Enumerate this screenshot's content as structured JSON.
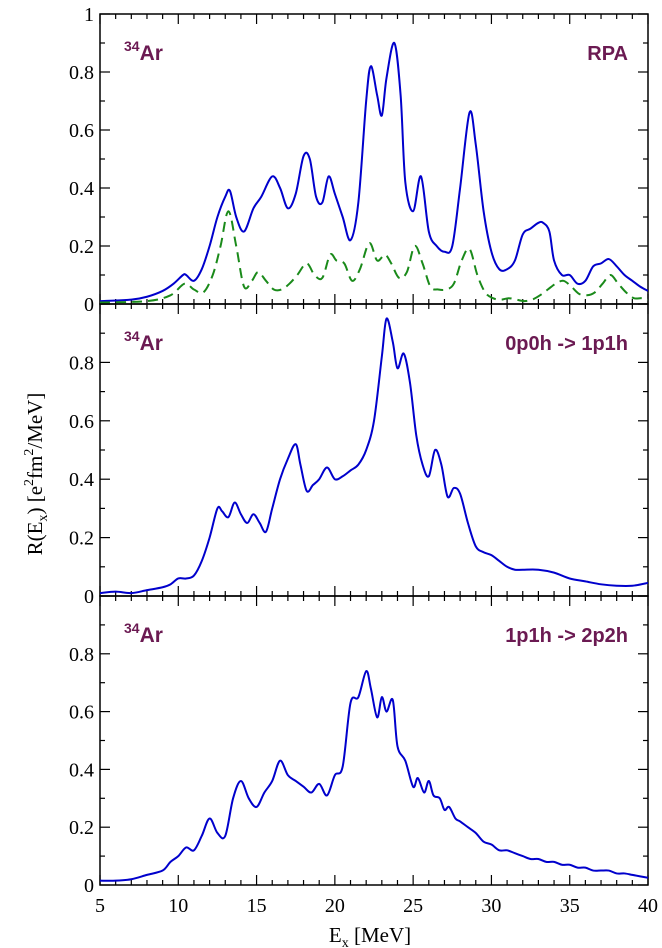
{
  "chart_data": {
    "type": "line",
    "x_axis": {
      "label_main": "E",
      "label_sub": "x",
      "label_unit": " [MeV]",
      "range": [
        5,
        40
      ],
      "ticks": [
        5,
        10,
        15,
        20,
        25,
        30,
        35,
        40
      ],
      "tick_labels": [
        "5",
        "10",
        "15",
        "20",
        "25",
        "30",
        "35",
        "40"
      ]
    },
    "y_axis": {
      "label_part1": "R(E",
      "label_sub": "x",
      "label_part2": ") [e",
      "label_sup1": "2",
      "label_part3": "fm",
      "label_sup2": "2",
      "label_part4": "/MeV]"
    },
    "colors": {
      "solid": "#0000cc",
      "dashed": "#1a8a1a",
      "label": "#6b1a52"
    },
    "panels": [
      {
        "nucleus_mass": "34",
        "nucleus_symbol": "Ar",
        "label": "RPA",
        "ylim": [
          0,
          1
        ],
        "ticks": [
          0,
          0.2,
          0.4,
          0.6,
          0.8,
          1
        ],
        "tick_labels": [
          "0",
          "0.2",
          "0.4",
          "0.6",
          "0.8",
          "1"
        ],
        "series": [
          {
            "style": "solid",
            "x": [
              5,
              7,
              8,
              9,
              9.7,
              10.3,
              10.5,
              11,
              11.5,
              12,
              12.5,
              13,
              13.3,
              13.7,
              14.2,
              14.8,
              15.3,
              16,
              16.5,
              17,
              17.5,
              18,
              18.4,
              18.8,
              19.2,
              19.6,
              20,
              20.5,
              21,
              21.5,
              22,
              22.3,
              22.7,
              23,
              23.3,
              23.8,
              24.2,
              24.5,
              25,
              25.5,
              26,
              26.5,
              27,
              27.5,
              28,
              28.6,
              29,
              29.5,
              30,
              30.5,
              31,
              31.5,
              32,
              32.5,
              33,
              33.3,
              33.7,
              34,
              34.5,
              35,
              35.5,
              36,
              36.5,
              37,
              37.5,
              38,
              38.5,
              39,
              39.5,
              40
            ],
            "y": [
              0.01,
              0.015,
              0.025,
              0.045,
              0.07,
              0.1,
              0.1,
              0.08,
              0.12,
              0.2,
              0.3,
              0.37,
              0.39,
              0.3,
              0.25,
              0.33,
              0.37,
              0.44,
              0.4,
              0.33,
              0.38,
              0.51,
              0.5,
              0.37,
              0.35,
              0.44,
              0.38,
              0.3,
              0.22,
              0.35,
              0.7,
              0.82,
              0.72,
              0.65,
              0.78,
              0.9,
              0.72,
              0.42,
              0.32,
              0.44,
              0.25,
              0.2,
              0.18,
              0.2,
              0.4,
              0.66,
              0.55,
              0.32,
              0.18,
              0.12,
              0.12,
              0.15,
              0.24,
              0.26,
              0.28,
              0.28,
              0.25,
              0.15,
              0.1,
              0.1,
              0.07,
              0.08,
              0.13,
              0.14,
              0.155,
              0.13,
              0.1,
              0.08,
              0.06,
              0.045
            ]
          },
          {
            "style": "dashed",
            "x": [
              5,
              8,
              9.5,
              10.4,
              11,
              11.6,
              12.2,
              12.7,
              13.2,
              13.7,
              14.2,
              14.7,
              15.1,
              15.6,
              16.1,
              16.6,
              17.1,
              17.6,
              18.2,
              18.7,
              19.2,
              19.7,
              20.1,
              20.6,
              21.1,
              21.6,
              22.2,
              22.7,
              23.2,
              23.6,
              24.1,
              24.6,
              25.1,
              25.6,
              26.1,
              26.6,
              27.1,
              27.6,
              28.1,
              28.6,
              29.1,
              29.6,
              30.1,
              30.6,
              31.1,
              31.6,
              32.1,
              32.6,
              33.1,
              33.6,
              34.1,
              34.6,
              35.1,
              35.6,
              36.1,
              36.6,
              37.1,
              37.6,
              38.1,
              38.6,
              39.1,
              39.6,
              40
            ],
            "y": [
              0.005,
              0.01,
              0.03,
              0.07,
              0.05,
              0.04,
              0.1,
              0.2,
              0.32,
              0.2,
              0.06,
              0.08,
              0.11,
              0.08,
              0.05,
              0.05,
              0.07,
              0.1,
              0.14,
              0.1,
              0.09,
              0.17,
              0.15,
              0.14,
              0.08,
              0.12,
              0.21,
              0.15,
              0.17,
              0.14,
              0.09,
              0.11,
              0.2,
              0.14,
              0.06,
              0.05,
              0.05,
              0.07,
              0.15,
              0.19,
              0.1,
              0.04,
              0.02,
              0.015,
              0.02,
              0.015,
              0.01,
              0.015,
              0.03,
              0.05,
              0.07,
              0.08,
              0.06,
              0.035,
              0.03,
              0.04,
              0.07,
              0.1,
              0.07,
              0.04,
              0.02,
              0.02,
              0.015
            ]
          }
        ]
      },
      {
        "nucleus_mass": "34",
        "nucleus_symbol": "Ar",
        "label": "0p0h -> 1p1h",
        "ylim": [
          0,
          1
        ],
        "ticks": [
          0,
          0.2,
          0.4,
          0.6,
          0.8
        ],
        "tick_labels": [
          "0",
          "0.2",
          "0.4",
          "0.6",
          "0.8"
        ],
        "series": [
          {
            "style": "solid",
            "x": [
              5,
              6,
              7,
              8,
              9,
              9.5,
              10,
              10.5,
              11,
              11.5,
              12,
              12.5,
              12.8,
              13.2,
              13.6,
              14,
              14.4,
              14.8,
              15.2,
              15.6,
              16,
              16.5,
              17,
              17.5,
              17.8,
              18.2,
              18.6,
              19,
              19.5,
              20,
              20.5,
              21,
              21.5,
              22,
              22.5,
              23,
              23.3,
              23.7,
              24,
              24.4,
              24.8,
              25.2,
              25.6,
              26,
              26.4,
              26.8,
              27.2,
              27.6,
              28,
              28.5,
              29,
              29.5,
              30,
              30.5,
              31,
              31.5,
              32,
              33,
              34,
              35,
              36,
              37,
              38,
              39,
              40
            ],
            "y": [
              0.01,
              0.015,
              0.01,
              0.02,
              0.03,
              0.04,
              0.06,
              0.06,
              0.07,
              0.12,
              0.2,
              0.3,
              0.29,
              0.27,
              0.32,
              0.28,
              0.25,
              0.28,
              0.25,
              0.22,
              0.3,
              0.4,
              0.47,
              0.52,
              0.45,
              0.36,
              0.38,
              0.4,
              0.44,
              0.4,
              0.41,
              0.43,
              0.45,
              0.5,
              0.6,
              0.82,
              0.95,
              0.87,
              0.78,
              0.83,
              0.73,
              0.55,
              0.45,
              0.41,
              0.5,
              0.45,
              0.34,
              0.37,
              0.35,
              0.25,
              0.17,
              0.15,
              0.14,
              0.12,
              0.1,
              0.09,
              0.09,
              0.09,
              0.08,
              0.06,
              0.05,
              0.04,
              0.035,
              0.035,
              0.045
            ]
          }
        ]
      },
      {
        "nucleus_mass": "34",
        "nucleus_symbol": "Ar",
        "label": "1p1h -> 2p2h",
        "ylim": [
          0,
          1
        ],
        "ticks": [
          0,
          0.2,
          0.4,
          0.6,
          0.8
        ],
        "tick_labels": [
          "0",
          "0.2",
          "0.4",
          "0.6",
          "0.8"
        ],
        "series": [
          {
            "style": "solid",
            "x": [
              5,
              6,
              7,
              8,
              9,
              9.5,
              10,
              10.5,
              11,
              11.5,
              12,
              12.5,
              13,
              13.5,
              14,
              14.5,
              15,
              15.5,
              16,
              16.5,
              17,
              17.5,
              18,
              18.5,
              19,
              19.5,
              20,
              20.5,
              21,
              21.5,
              22,
              22.3,
              22.7,
              23,
              23.3,
              23.7,
              24,
              24.5,
              25,
              25.3,
              25.7,
              26,
              26.3,
              26.7,
              27,
              27.3,
              27.7,
              28,
              28.5,
              29,
              29.5,
              30,
              30.5,
              31,
              31.5,
              32,
              32.5,
              33,
              33.5,
              34,
              34.5,
              35,
              35.5,
              36,
              36.5,
              37,
              37.5,
              38,
              38.5,
              39,
              39.5,
              40
            ],
            "y": [
              0.015,
              0.015,
              0.02,
              0.035,
              0.05,
              0.08,
              0.1,
              0.13,
              0.12,
              0.17,
              0.23,
              0.18,
              0.17,
              0.3,
              0.36,
              0.3,
              0.27,
              0.32,
              0.36,
              0.43,
              0.38,
              0.36,
              0.34,
              0.32,
              0.35,
              0.31,
              0.38,
              0.41,
              0.63,
              0.65,
              0.74,
              0.68,
              0.58,
              0.65,
              0.6,
              0.64,
              0.48,
              0.43,
              0.34,
              0.37,
              0.32,
              0.36,
              0.31,
              0.3,
              0.26,
              0.27,
              0.23,
              0.22,
              0.2,
              0.18,
              0.15,
              0.14,
              0.12,
              0.12,
              0.11,
              0.1,
              0.09,
              0.09,
              0.08,
              0.08,
              0.07,
              0.07,
              0.06,
              0.06,
              0.05,
              0.05,
              0.05,
              0.04,
              0.04,
              0.035,
              0.03,
              0.025
            ]
          }
        ]
      }
    ]
  }
}
